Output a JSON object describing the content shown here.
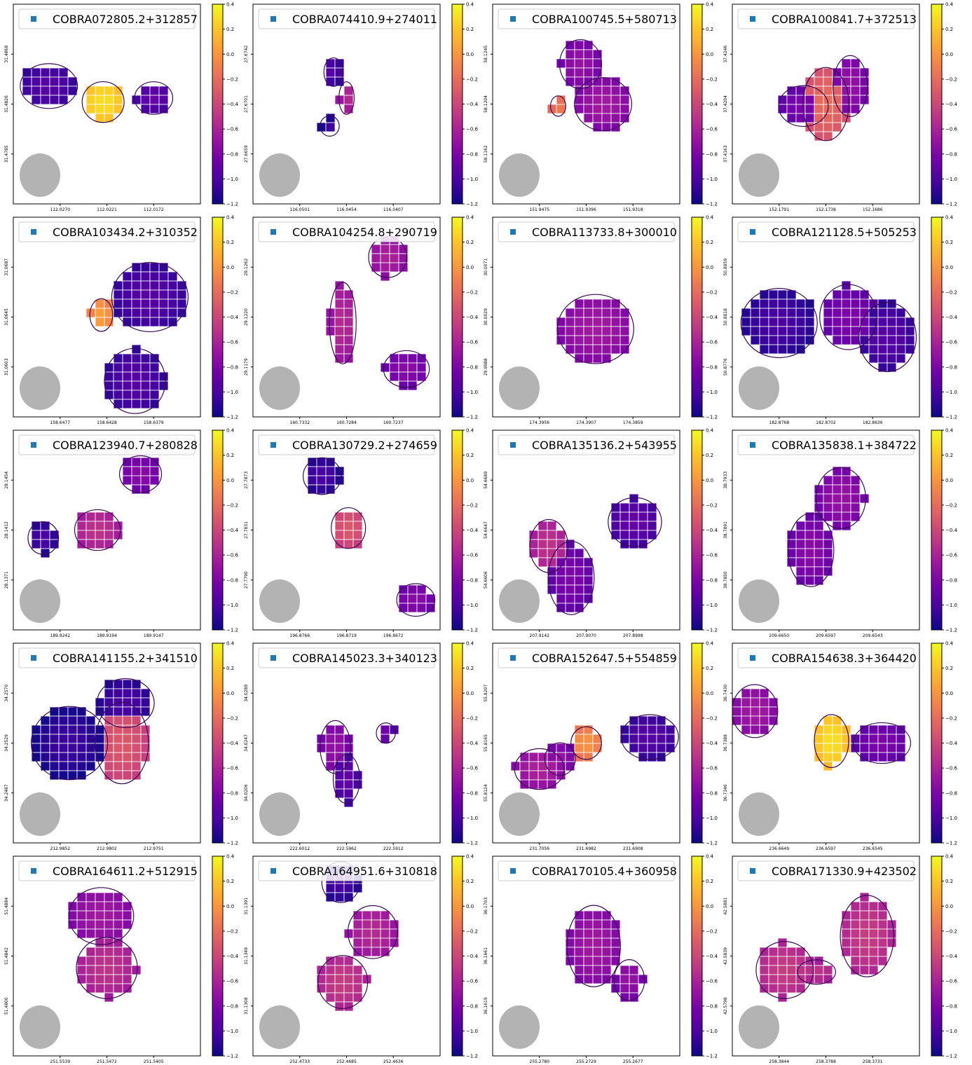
{
  "figure": {
    "rows": 5,
    "cols": 4,
    "colormap": "plasma",
    "colormap_stops": [
      "#0d0887",
      "#46039f",
      "#7201a8",
      "#9c179e",
      "#bd3786",
      "#d8576b",
      "#ed7953",
      "#fb9f3a",
      "#fdca26",
      "#f0f921"
    ],
    "contour_color": "#3a0858",
    "beam_color": "#b3b3b3",
    "legend_marker_color": "#1f77b4",
    "grid_line_color": "#ffffff"
  },
  "chart_data": [
    {
      "type": "heatmap",
      "title": "COBRA072805.2+312857",
      "xticks": [
        "112.0270",
        "112.0221",
        "112.0172"
      ],
      "yticks": [
        "31.4868",
        "31.4826",
        "31.4785"
      ],
      "colorbar": {
        "min": -1.2,
        "max": 0.4,
        "ticks": [
          "0.4",
          "0.2",
          "0.0",
          "−0.2",
          "−0.4",
          "−0.6",
          "−0.8",
          "−1.0",
          "−1.2"
        ]
      },
      "blobs": [
        [
          0.19,
          0.41,
          0.15,
          0.11,
          -0.95
        ],
        [
          0.48,
          0.49,
          0.11,
          0.1,
          0.3
        ],
        [
          0.75,
          0.47,
          0.1,
          0.08,
          -0.9
        ]
      ]
    },
    {
      "type": "heatmap",
      "title": "COBRA074410.9+274011",
      "xticks": [
        "116.0501",
        "116.0454",
        "116.0407"
      ],
      "yticks": [
        "27.6742",
        "27.6701",
        "27.6659"
      ],
      "colorbar": {
        "min": -1.2,
        "max": 0.4,
        "ticks": [
          "0.4",
          "0.2",
          "0.0",
          "−0.2",
          "−0.4",
          "−0.6",
          "−0.8",
          "−1.0",
          "−1.2"
        ]
      },
      "blobs": [
        [
          0.43,
          0.34,
          0.05,
          0.07,
          -0.95
        ],
        [
          0.5,
          0.47,
          0.04,
          0.08,
          -0.55
        ],
        [
          0.41,
          0.61,
          0.05,
          0.05,
          -1.05
        ]
      ]
    },
    {
      "type": "heatmap",
      "title": "COBRA100745.5+580713",
      "xticks": [
        "151.9475",
        "151.9396",
        "151.9318"
      ],
      "yticks": [
        "58.1245",
        "58.1204",
        "58.1162"
      ],
      "colorbar": {
        "min": -1.2,
        "max": 0.4,
        "ticks": [
          "0.4",
          "0.2",
          "0.0",
          "−0.2",
          "−0.4",
          "−0.6",
          "−0.8",
          "−1.0",
          "−1.2"
        ]
      },
      "blobs": [
        [
          0.47,
          0.3,
          0.11,
          0.12,
          -0.7
        ],
        [
          0.59,
          0.5,
          0.15,
          0.13,
          -0.65
        ],
        [
          0.35,
          0.51,
          0.04,
          0.05,
          -0.1
        ]
      ]
    },
    {
      "type": "heatmap",
      "title": "COBRA100841.7+372513",
      "xticks": [
        "152.1791",
        "152.1738",
        "152.1686"
      ],
      "yticks": [
        "37.4246",
        "37.4204",
        "37.4163"
      ],
      "colorbar": {
        "min": -1.2,
        "max": 0.4,
        "ticks": [
          "0.4",
          "0.2",
          "0.0",
          "−0.2",
          "−0.4",
          "−0.6",
          "−0.8",
          "−1.0",
          "−1.2"
        ]
      },
      "blobs": [
        [
          0.38,
          0.51,
          0.13,
          0.1,
          -0.8
        ],
        [
          0.5,
          0.5,
          0.12,
          0.18,
          -0.2
        ],
        [
          0.63,
          0.41,
          0.09,
          0.15,
          -0.7
        ]
      ]
    },
    {
      "type": "heatmap",
      "title": "COBRA103434.2+310352",
      "xticks": [
        "158.6477",
        "158.6428",
        "158.6379"
      ],
      "yticks": [
        "31.0687",
        "31.0645",
        "31.0603"
      ],
      "colorbar": {
        "min": -1.2,
        "max": 0.4,
        "ticks": [
          "0.4",
          "0.2",
          "0.0",
          "−0.2",
          "−0.4",
          "−0.6",
          "−0.8",
          "−1.0",
          "−1.2"
        ]
      },
      "blobs": [
        [
          0.73,
          0.4,
          0.2,
          0.17,
          -0.95
        ],
        [
          0.47,
          0.49,
          0.06,
          0.08,
          0.05
        ],
        [
          0.65,
          0.82,
          0.16,
          0.16,
          -0.95
        ]
      ]
    },
    {
      "type": "heatmap",
      "title": "COBRA104254.8+290719",
      "xticks": [
        "160.7332",
        "160.7284",
        "160.7237"
      ],
      "yticks": [
        "29.1262",
        "29.1220",
        "29.1179"
      ],
      "colorbar": {
        "min": -1.2,
        "max": 0.4,
        "ticks": [
          "0.4",
          "0.2",
          "0.0",
          "−0.2",
          "−0.4",
          "−0.6",
          "−0.8",
          "−1.0",
          "−1.2"
        ]
      },
      "blobs": [
        [
          0.72,
          0.2,
          0.1,
          0.1,
          -0.6
        ],
        [
          0.48,
          0.53,
          0.07,
          0.2,
          -0.55
        ],
        [
          0.82,
          0.76,
          0.12,
          0.09,
          -0.75
        ]
      ]
    },
    {
      "type": "heatmap",
      "title": "COBRA113733.8+300010",
      "xticks": [
        "174.3956",
        "174.3907",
        "174.3859"
      ],
      "yticks": [
        "30.0071",
        "30.0029",
        "29.9988"
      ],
      "colorbar": {
        "min": -1.2,
        "max": 0.4,
        "ticks": [
          "0.4",
          "0.2",
          "0.0",
          "−0.2",
          "−0.4",
          "−0.6",
          "−0.8",
          "−1.0",
          "−1.2"
        ]
      },
      "blobs": [
        [
          0.55,
          0.56,
          0.2,
          0.17,
          -0.65
        ]
      ]
    },
    {
      "type": "heatmap",
      "title": "COBRA121128.5+505253",
      "xticks": [
        "182.8768",
        "182.8702",
        "182.8636"
      ],
      "yticks": [
        "50.8859",
        "50.8818",
        "50.8776"
      ],
      "colorbar": {
        "min": -1.2,
        "max": 0.4,
        "ticks": [
          "0.4",
          "0.2",
          "0.0",
          "−0.2",
          "−0.4",
          "−0.6",
          "−0.8",
          "−1.0",
          "−1.2"
        ]
      },
      "blobs": [
        [
          0.25,
          0.53,
          0.2,
          0.17,
          -1.0
        ],
        [
          0.62,
          0.5,
          0.15,
          0.16,
          -0.8
        ],
        [
          0.83,
          0.6,
          0.15,
          0.17,
          -0.95
        ]
      ]
    },
    {
      "type": "heatmap",
      "title": "COBRA123940.7+280828",
      "xticks": [
        "189.9242",
        "189.9194",
        "189.9147"
      ],
      "yticks": [
        "28.1454",
        "28.1412",
        "28.1371"
      ],
      "colorbar": {
        "min": -1.2,
        "max": 0.4,
        "ticks": [
          "0.4",
          "0.2",
          "0.0",
          "−0.2",
          "−0.4",
          "−0.6",
          "−0.8",
          "−1.0",
          "−1.2"
        ]
      },
      "blobs": [
        [
          0.16,
          0.54,
          0.08,
          0.08,
          -1.0
        ],
        [
          0.45,
          0.5,
          0.12,
          0.1,
          -0.5
        ],
        [
          0.68,
          0.22,
          0.11,
          0.09,
          -0.75
        ]
      ]
    },
    {
      "type": "heatmap",
      "title": "COBRA130729.2+274659",
      "xticks": [
        "196.8766",
        "196.8719",
        "196.8672"
      ],
      "yticks": [
        "27.7873",
        "27.7831",
        "27.7790"
      ],
      "colorbar": {
        "min": -1.2,
        "max": 0.4,
        "ticks": [
          "0.4",
          "0.2",
          "0.0",
          "−0.2",
          "−0.4",
          "−0.6",
          "−0.8",
          "−1.0",
          "−1.2"
        ]
      },
      "blobs": [
        [
          0.37,
          0.23,
          0.1,
          0.09,
          -1.0
        ],
        [
          0.51,
          0.49,
          0.09,
          0.1,
          -0.3
        ],
        [
          0.87,
          0.85,
          0.1,
          0.08,
          -0.75
        ]
      ]
    },
    {
      "type": "heatmap",
      "title": "COBRA135136.2+543955",
      "xticks": [
        "207.9142",
        "207.9070",
        "207.8998"
      ],
      "yticks": [
        "54.6689",
        "54.6647",
        "54.6606"
      ],
      "colorbar": {
        "min": -1.2,
        "max": 0.4,
        "ticks": [
          "0.4",
          "0.2",
          "0.0",
          "−0.2",
          "−0.4",
          "−0.6",
          "−0.8",
          "−1.0",
          "−1.2"
        ]
      },
      "blobs": [
        [
          0.3,
          0.58,
          0.1,
          0.13,
          -0.5
        ],
        [
          0.42,
          0.74,
          0.12,
          0.18,
          -0.8
        ],
        [
          0.76,
          0.46,
          0.14,
          0.12,
          -0.9
        ]
      ]
    },
    {
      "type": "heatmap",
      "title": "COBRA135838.1+384722",
      "xticks": [
        "209.6650",
        "209.6597",
        "209.6543"
      ],
      "yticks": [
        "38.7933",
        "38.7891",
        "38.7850"
      ],
      "colorbar": {
        "min": -1.2,
        "max": 0.4,
        "ticks": [
          "0.4",
          "0.2",
          "0.0",
          "−0.2",
          "−0.4",
          "−0.6",
          "−0.8",
          "−1.0",
          "−1.2"
        ]
      },
      "blobs": [
        [
          0.58,
          0.34,
          0.13,
          0.15,
          -0.7
        ],
        [
          0.42,
          0.6,
          0.12,
          0.18,
          -0.75
        ]
      ]
    },
    {
      "type": "heatmap",
      "title": "COBRA141155.2+341510",
      "xticks": [
        "212.9852",
        "212.9802",
        "212.9751"
      ],
      "yticks": [
        "34.2570",
        "34.2529",
        "34.2487"
      ],
      "colorbar": {
        "min": -1.2,
        "max": 0.4,
        "ticks": [
          "0.4",
          "0.2",
          "0.0",
          "−0.2",
          "−0.4",
          "−0.6",
          "−0.8",
          "−1.0",
          "−1.2"
        ]
      },
      "blobs": [
        [
          0.3,
          0.5,
          0.2,
          0.18,
          -1.05
        ],
        [
          0.58,
          0.5,
          0.14,
          0.2,
          -0.3
        ],
        [
          0.6,
          0.3,
          0.15,
          0.12,
          -1.0
        ]
      ]
    },
    {
      "type": "heatmap",
      "title": "COBRA145023.3+340123",
      "xticks": [
        "222.6012",
        "222.5962",
        "222.5912"
      ],
      "yticks": [
        "34.0289",
        "34.0247",
        "34.0206"
      ],
      "colorbar": {
        "min": -1.2,
        "max": 0.4,
        "ticks": [
          "0.4",
          "0.2",
          "0.0",
          "−0.2",
          "−0.4",
          "−0.6",
          "−0.8",
          "−1.0",
          "−1.2"
        ]
      },
      "blobs": [
        [
          0.44,
          0.52,
          0.08,
          0.13,
          -0.7
        ],
        [
          0.5,
          0.68,
          0.07,
          0.12,
          -0.9
        ],
        [
          0.71,
          0.45,
          0.05,
          0.05,
          -0.85
        ]
      ]
    },
    {
      "type": "heatmap",
      "title": "COBRA152647.5+554859",
      "xticks": [
        "231.7056",
        "231.6982",
        "231.6908"
      ],
      "yticks": [
        "55.8207",
        "55.8165",
        "55.8124"
      ],
      "colorbar": {
        "min": -1.2,
        "max": 0.4,
        "ticks": [
          "0.4",
          "0.2",
          "0.0",
          "−0.2",
          "−0.4",
          "−0.6",
          "−0.8",
          "−1.0",
          "−1.2"
        ]
      },
      "blobs": [
        [
          0.25,
          0.63,
          0.13,
          0.1,
          -0.6
        ],
        [
          0.5,
          0.5,
          0.08,
          0.08,
          0.0
        ],
        [
          0.36,
          0.58,
          0.08,
          0.08,
          -0.7
        ],
        [
          0.84,
          0.47,
          0.15,
          0.11,
          -0.95
        ]
      ]
    },
    {
      "type": "heatmap",
      "title": "COBRA154638.3+364420",
      "xticks": [
        "236.6649",
        "236.6597",
        "236.6545"
      ],
      "yticks": [
        "36.7430",
        "36.7388",
        "36.7346"
      ],
      "colorbar": {
        "min": -1.2,
        "max": 0.4,
        "ticks": [
          "0.4",
          "0.2",
          "0.0",
          "−0.2",
          "−0.4",
          "−0.6",
          "−0.8",
          "−1.0",
          "−1.2"
        ]
      },
      "blobs": [
        [
          0.12,
          0.34,
          0.12,
          0.13,
          -0.65
        ],
        [
          0.53,
          0.49,
          0.09,
          0.13,
          0.3
        ],
        [
          0.8,
          0.5,
          0.15,
          0.1,
          -0.8
        ]
      ]
    },
    {
      "type": "heatmap",
      "title": "COBRA164611.2+512915",
      "xticks": [
        "251.5539",
        "251.5472",
        "251.5405"
      ],
      "yticks": [
        "51.4884",
        "51.4842",
        "51.4800"
      ],
      "colorbar": {
        "min": -1.2,
        "max": 0.4,
        "ticks": [
          "0.4",
          "0.2",
          "0.0",
          "−0.2",
          "−0.4",
          "−0.6",
          "−0.8",
          "−1.0",
          "−1.2"
        ]
      },
      "blobs": [
        [
          0.47,
          0.3,
          0.17,
          0.14,
          -0.65
        ],
        [
          0.5,
          0.56,
          0.16,
          0.15,
          -0.5
        ]
      ]
    },
    {
      "type": "heatmap",
      "title": "COBRA164951.6+310818",
      "xticks": [
        "252.4733",
        "252.4685",
        "252.4636"
      ],
      "yticks": [
        "31.1391",
        "31.1349",
        "31.1308"
      ],
      "colorbar": {
        "min": -1.2,
        "max": 0.4,
        "ticks": [
          "0.4",
          "0.2",
          "0.0",
          "−0.2",
          "−0.4",
          "−0.6",
          "−0.8",
          "−1.0",
          "−1.2"
        ]
      },
      "blobs": [
        [
          0.47,
          0.13,
          0.1,
          0.1,
          -1.0
        ],
        [
          0.64,
          0.38,
          0.13,
          0.13,
          -0.55
        ],
        [
          0.48,
          0.63,
          0.13,
          0.13,
          -0.45
        ]
      ]
    },
    {
      "type": "heatmap",
      "title": "COBRA170105.4+360958",
      "xticks": [
        "255.2780",
        "255.2729",
        "255.2677"
      ],
      "yticks": [
        "36.1703",
        "36.1661",
        "36.1619"
      ],
      "colorbar": {
        "min": -1.2,
        "max": 0.4,
        "ticks": [
          "0.4",
          "0.2",
          "0.0",
          "−0.2",
          "−0.4",
          "−0.6",
          "−0.8",
          "−1.0",
          "−1.2"
        ]
      },
      "blobs": [
        [
          0.54,
          0.45,
          0.14,
          0.2,
          -0.65
        ],
        [
          0.73,
          0.62,
          0.08,
          0.1,
          -0.7
        ]
      ]
    },
    {
      "type": "heatmap",
      "title": "COBRA171330.9+423502",
      "xticks": [
        "258.3844",
        "258.3788",
        "258.3731"
      ],
      "yticks": [
        "42.5881",
        "42.5839",
        "42.5798"
      ],
      "colorbar": {
        "min": -1.2,
        "max": 0.4,
        "ticks": [
          "0.4",
          "0.2",
          "0.0",
          "−0.2",
          "−0.4",
          "−0.6",
          "−0.8",
          "−1.0",
          "−1.2"
        ]
      },
      "blobs": [
        [
          0.28,
          0.57,
          0.15,
          0.14,
          -0.45
        ],
        [
          0.72,
          0.4,
          0.14,
          0.2,
          -0.45
        ],
        [
          0.45,
          0.58,
          0.1,
          0.06,
          -0.5
        ]
      ]
    }
  ]
}
